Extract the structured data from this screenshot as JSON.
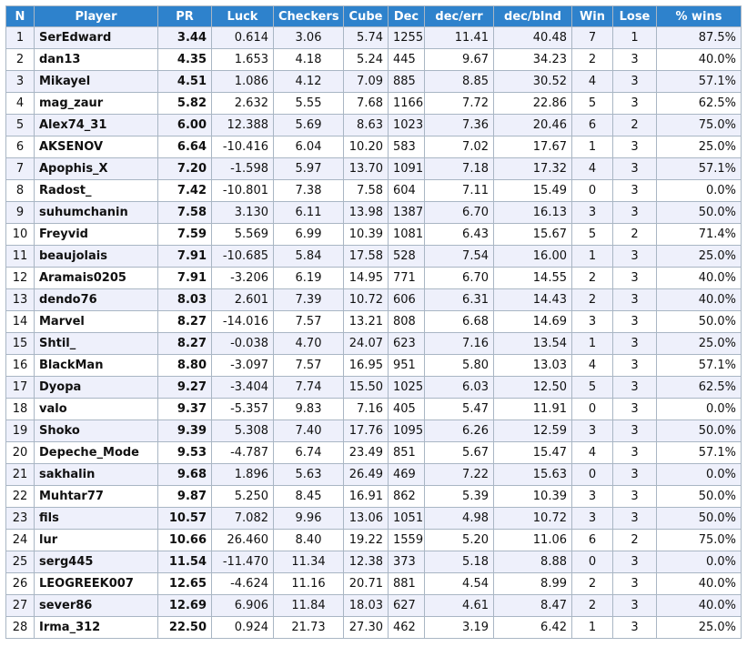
{
  "table": {
    "headers": [
      "N",
      "Player",
      "PR",
      "Luck",
      "Checkers",
      "Cube",
      "Dec",
      "dec/err",
      "dec/blnd",
      "Win",
      "Lose",
      "% wins"
    ],
    "rows": [
      [
        "1",
        "SerEdward",
        "3.44",
        "0.614",
        "3.06",
        "5.74",
        "1255",
        "11.41",
        "40.48",
        "7",
        "1",
        "87.5%"
      ],
      [
        "2",
        "dan13",
        "4.35",
        "1.653",
        "4.18",
        "5.24",
        "445",
        "9.67",
        "34.23",
        "2",
        "3",
        "40.0%"
      ],
      [
        "3",
        "Mikayel",
        "4.51",
        "1.086",
        "4.12",
        "7.09",
        "885",
        "8.85",
        "30.52",
        "4",
        "3",
        "57.1%"
      ],
      [
        "4",
        "mag_zaur",
        "5.82",
        "2.632",
        "5.55",
        "7.68",
        "1166",
        "7.72",
        "22.86",
        "5",
        "3",
        "62.5%"
      ],
      [
        "5",
        "Alex74_31",
        "6.00",
        "12.388",
        "5.69",
        "8.63",
        "1023",
        "7.36",
        "20.46",
        "6",
        "2",
        "75.0%"
      ],
      [
        "6",
        "AKSENOV",
        "6.64",
        "-10.416",
        "6.04",
        "10.20",
        "583",
        "7.02",
        "17.67",
        "1",
        "3",
        "25.0%"
      ],
      [
        "7",
        "Apophis_X",
        "7.20",
        "-1.598",
        "5.97",
        "13.70",
        "1091",
        "7.18",
        "17.32",
        "4",
        "3",
        "57.1%"
      ],
      [
        "8",
        "Radost_",
        "7.42",
        "-10.801",
        "7.38",
        "7.58",
        "604",
        "7.11",
        "15.49",
        "0",
        "3",
        "0.0%"
      ],
      [
        "9",
        "suhumchanin",
        "7.58",
        "3.130",
        "6.11",
        "13.98",
        "1387",
        "6.70",
        "16.13",
        "3",
        "3",
        "50.0%"
      ],
      [
        "10",
        "Freyvid",
        "7.59",
        "5.569",
        "6.99",
        "10.39",
        "1081",
        "6.43",
        "15.67",
        "5",
        "2",
        "71.4%"
      ],
      [
        "11",
        "beaujolais",
        "7.91",
        "-10.685",
        "5.84",
        "17.58",
        "528",
        "7.54",
        "16.00",
        "1",
        "3",
        "25.0%"
      ],
      [
        "12",
        "Aramais0205",
        "7.91",
        "-3.206",
        "6.19",
        "14.95",
        "771",
        "6.70",
        "14.55",
        "2",
        "3",
        "40.0%"
      ],
      [
        "13",
        "dendo76",
        "8.03",
        "2.601",
        "7.39",
        "10.72",
        "606",
        "6.31",
        "14.43",
        "2",
        "3",
        "40.0%"
      ],
      [
        "14",
        "Marvel",
        "8.27",
        "-14.016",
        "7.57",
        "13.21",
        "808",
        "6.68",
        "14.69",
        "3",
        "3",
        "50.0%"
      ],
      [
        "15",
        "Shtil_",
        "8.27",
        "-0.038",
        "4.70",
        "24.07",
        "623",
        "7.16",
        "13.54",
        "1",
        "3",
        "25.0%"
      ],
      [
        "16",
        "BlackMan",
        "8.80",
        "-3.097",
        "7.57",
        "16.95",
        "951",
        "5.80",
        "13.03",
        "4",
        "3",
        "57.1%"
      ],
      [
        "17",
        "Dyopa",
        "9.27",
        "-3.404",
        "7.74",
        "15.50",
        "1025",
        "6.03",
        "12.50",
        "5",
        "3",
        "62.5%"
      ],
      [
        "18",
        "valo",
        "9.37",
        "-5.357",
        "9.83",
        "7.16",
        "405",
        "5.47",
        "11.91",
        "0",
        "3",
        "0.0%"
      ],
      [
        "19",
        "Shoko",
        "9.39",
        "5.308",
        "7.40",
        "17.76",
        "1095",
        "6.26",
        "12.59",
        "3",
        "3",
        "50.0%"
      ],
      [
        "20",
        "Depeche_Mode",
        "9.53",
        "-4.787",
        "6.74",
        "23.49",
        "851",
        "5.67",
        "15.47",
        "4",
        "3",
        "57.1%"
      ],
      [
        "21",
        "sakhalin",
        "9.68",
        "1.896",
        "5.63",
        "26.49",
        "469",
        "7.22",
        "15.63",
        "0",
        "3",
        "0.0%"
      ],
      [
        "22",
        "Muhtar77",
        "9.87",
        "5.250",
        "8.45",
        "16.91",
        "862",
        "5.39",
        "10.39",
        "3",
        "3",
        "50.0%"
      ],
      [
        "23",
        "fils",
        "10.57",
        "7.082",
        "9.96",
        "13.06",
        "1051",
        "4.98",
        "10.72",
        "3",
        "3",
        "50.0%"
      ],
      [
        "24",
        "lur",
        "10.66",
        "26.460",
        "8.40",
        "19.22",
        "1559",
        "5.20",
        "11.06",
        "6",
        "2",
        "75.0%"
      ],
      [
        "25",
        "serg445",
        "11.54",
        "-11.470",
        "11.34",
        "12.38",
        "373",
        "5.18",
        "8.88",
        "0",
        "3",
        "0.0%"
      ],
      [
        "26",
        "LEOGREEK007",
        "12.65",
        "-4.624",
        "11.16",
        "20.71",
        "881",
        "4.54",
        "8.99",
        "2",
        "3",
        "40.0%"
      ],
      [
        "27",
        "sever86",
        "12.69",
        "6.906",
        "11.84",
        "18.03",
        "627",
        "4.61",
        "8.47",
        "2",
        "3",
        "40.0%"
      ],
      [
        "28",
        "Irma_312",
        "22.50",
        "0.924",
        "21.73",
        "27.30",
        "462",
        "3.19",
        "6.42",
        "1",
        "3",
        "25.0%"
      ]
    ]
  },
  "colors": {
    "header_bg": "#2e82cc",
    "header_text": "#ffffff",
    "row_odd_bg": "#eef0fb",
    "row_even_bg": "#ffffff",
    "border": "#a9b6c4"
  }
}
